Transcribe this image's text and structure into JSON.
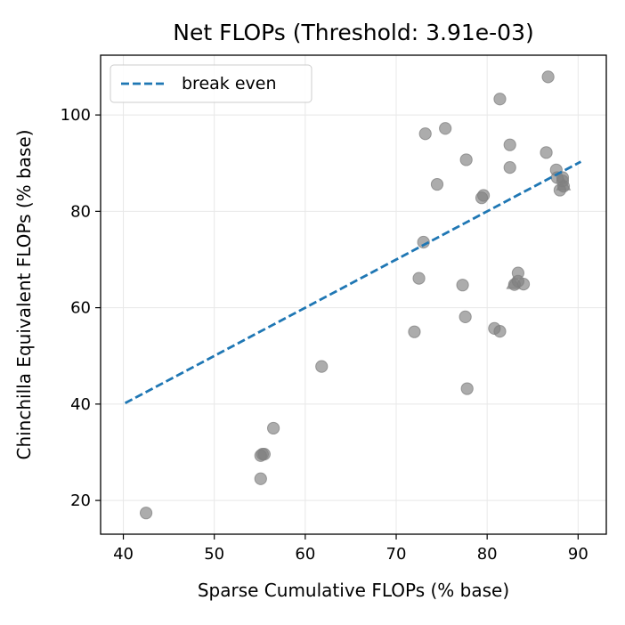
{
  "chart_data": {
    "type": "scatter",
    "title": "Net FLOPs (Threshold: 3.91e-03)",
    "xlabel": "Sparse Cumulative FLOPs (% base)",
    "ylabel": "Chinchilla Equivalent FLOPs (% base)",
    "xlim": [
      37.5,
      93.1
    ],
    "ylim": [
      13.0,
      112.4
    ],
    "xticks": [
      40,
      50,
      60,
      70,
      80,
      90
    ],
    "yticks": [
      20,
      40,
      60,
      80,
      100
    ],
    "grid": true,
    "legend_position": "top-left",
    "colors": {
      "points": "#808080",
      "break_even": "#1f77b4"
    },
    "break_even": {
      "name": "break even",
      "x": [
        40.2,
        90.3
      ],
      "y": [
        40.2,
        90.3
      ]
    },
    "points": [
      {
        "x": 42.5,
        "y": 17.4
      },
      {
        "x": 55.1,
        "y": 24.5
      },
      {
        "x": 55.1,
        "y": 29.3
      },
      {
        "x": 55.3,
        "y": 29.6
      },
      {
        "x": 55.5,
        "y": 29.6
      },
      {
        "x": 56.5,
        "y": 35.0
      },
      {
        "x": 61.8,
        "y": 47.8
      },
      {
        "x": 72.0,
        "y": 55.0
      },
      {
        "x": 72.5,
        "y": 66.1
      },
      {
        "x": 73.0,
        "y": 73.6
      },
      {
        "x": 73.2,
        "y": 96.1
      },
      {
        "x": 74.5,
        "y": 85.6
      },
      {
        "x": 75.4,
        "y": 97.2
      },
      {
        "x": 77.3,
        "y": 64.7
      },
      {
        "x": 77.6,
        "y": 58.1
      },
      {
        "x": 77.7,
        "y": 90.7
      },
      {
        "x": 77.8,
        "y": 43.2
      },
      {
        "x": 79.4,
        "y": 82.8
      },
      {
        "x": 79.6,
        "y": 83.3
      },
      {
        "x": 80.8,
        "y": 55.7
      },
      {
        "x": 81.4,
        "y": 103.3
      },
      {
        "x": 81.4,
        "y": 55.1
      },
      {
        "x": 82.5,
        "y": 93.8
      },
      {
        "x": 82.5,
        "y": 89.1
      },
      {
        "x": 83.0,
        "y": 64.8
      },
      {
        "x": 83.4,
        "y": 65.5
      },
      {
        "x": 83.4,
        "y": 67.2
      },
      {
        "x": 84.0,
        "y": 64.9
      },
      {
        "x": 86.5,
        "y": 92.2
      },
      {
        "x": 86.7,
        "y": 107.9
      },
      {
        "x": 87.6,
        "y": 88.6
      },
      {
        "x": 87.7,
        "y": 87.0
      },
      {
        "x": 88.0,
        "y": 84.4
      },
      {
        "x": 88.3,
        "y": 86.3
      },
      {
        "x": 88.3,
        "y": 87.0
      },
      {
        "x": 88.4,
        "y": 85.2
      }
    ],
    "triangles": [
      {
        "x": 82.9,
        "y": 65.0
      },
      {
        "x": 88.4,
        "y": 85.5
      }
    ]
  }
}
